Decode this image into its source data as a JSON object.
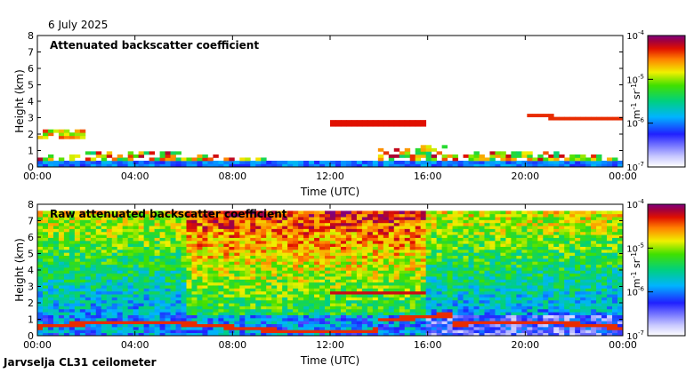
{
  "date": "6 July 2025",
  "footer": "Jarvselja CL31 ceilometer",
  "chart_data": [
    {
      "type": "heatmap",
      "title": "Attenuated backscatter coefficient",
      "xlabel": "Time (UTC)",
      "ylabel": "Height (km)",
      "xticks": [
        "00:00",
        "04:00",
        "08:00",
        "12:00",
        "16:00",
        "20:00",
        "00:00"
      ],
      "xlim_hours": [
        0,
        24
      ],
      "ylim_km": [
        0,
        8
      ],
      "yticks": [
        0,
        1,
        2,
        3,
        4,
        5,
        6,
        7,
        8
      ],
      "colorbar": {
        "scale": "log",
        "range": [
          1e-07,
          0.0001
        ],
        "ticks": [
          {
            "base": "10",
            "exp": "-4",
            "value": 0.0001
          },
          {
            "base": "10",
            "exp": "-5",
            "value": 1e-05
          },
          {
            "base": "10",
            "exp": "-6",
            "value": 1e-06
          },
          {
            "base": "10",
            "exp": "-7",
            "value": 1e-07
          }
        ],
        "unit": {
          "m": "m",
          "m_exp": "-1",
          "sr": "sr",
          "sr_exp": "-1"
        }
      }
    },
    {
      "type": "heatmap",
      "title": "Raw attenuated backscatter coefficient",
      "xlabel": "Time (UTC)",
      "ylabel": "Height (km)",
      "xticks": [
        "00:00",
        "04:00",
        "08:00",
        "12:00",
        "16:00",
        "20:00",
        "00:00"
      ],
      "xlim_hours": [
        0,
        24
      ],
      "ylim_km": [
        0,
        8
      ],
      "yticks": [
        0,
        1,
        2,
        3,
        4,
        5,
        6,
        7,
        8
      ],
      "colorbar": {
        "scale": "log",
        "range": [
          1e-07,
          0.0001
        ],
        "ticks": [
          {
            "base": "10",
            "exp": "-4",
            "value": 0.0001
          },
          {
            "base": "10",
            "exp": "-5",
            "value": 1e-05
          },
          {
            "base": "10",
            "exp": "-6",
            "value": 1e-06
          },
          {
            "base": "10",
            "exp": "-7",
            "value": 1e-07
          }
        ],
        "unit": {
          "m": "m",
          "m_exp": "-1",
          "sr": "sr",
          "sr_exp": "-1"
        }
      }
    }
  ]
}
